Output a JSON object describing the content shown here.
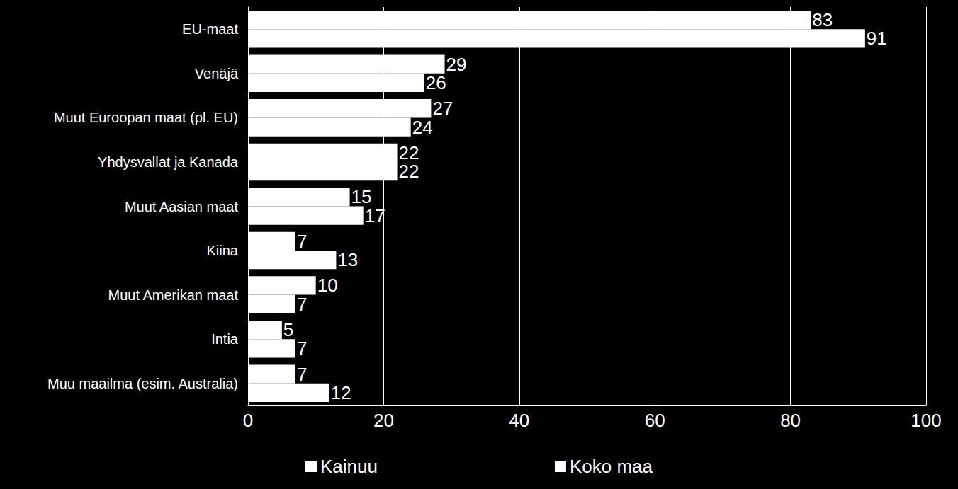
{
  "chart_data": {
    "type": "bar",
    "orientation": "horizontal",
    "categories": [
      "EU-maat",
      "Venäjä",
      "Muut Euroopan maat (pl. EU)",
      "Yhdysvallat ja Kanada",
      "Muut Aasian maat",
      "Kiina",
      "Muut Amerikan maat",
      "Intia",
      "Muu maailma (esim. Australia)"
    ],
    "series": [
      {
        "name": "Kainuu",
        "color": "#ffffff",
        "values": [
          83,
          29,
          27,
          22,
          15,
          7,
          10,
          5,
          7
        ]
      },
      {
        "name": "Koko maa",
        "color": "#ffffff",
        "values": [
          91,
          26,
          24,
          22,
          17,
          13,
          7,
          7,
          12
        ]
      }
    ],
    "xlim": [
      0,
      100
    ],
    "xticks": [
      0,
      20,
      40,
      60,
      80,
      100
    ],
    "grid": true,
    "data_labels": true,
    "legend": "bottom"
  }
}
